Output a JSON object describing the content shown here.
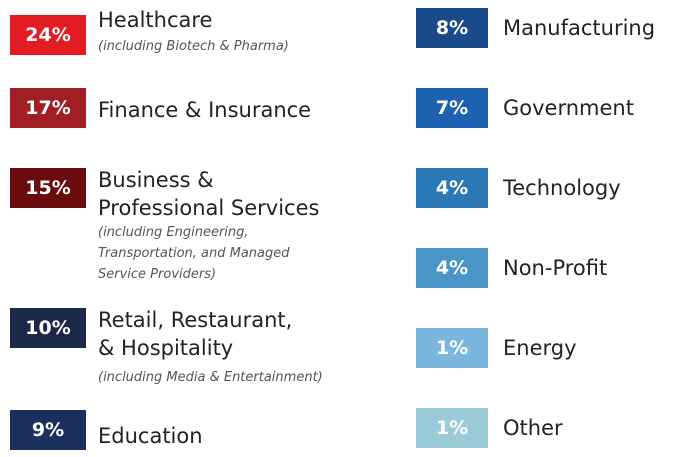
{
  "left": [
    {
      "pct": "24%",
      "label": [
        "Healthcare"
      ],
      "note": [
        "(including Biotech & Pharma)"
      ],
      "color": "#e31b23"
    },
    {
      "pct": "17%",
      "label": [
        "Finance & Insurance"
      ],
      "note": [],
      "color": "#a11f24"
    },
    {
      "pct": "15%",
      "label": [
        "Business &",
        "Professional Services"
      ],
      "note": [
        "(including Engineering,",
        "Transportation, and Managed",
        "Service Providers)"
      ],
      "color": "#6a0b0d"
    },
    {
      "pct": "10%",
      "label": [
        "Retail, Restaurant,",
        "& Hospitality"
      ],
      "note": [
        "(including Media & Entertainment)"
      ],
      "color": "#1a2949"
    },
    {
      "pct": "9%",
      "label": [
        "Education"
      ],
      "note": [],
      "color": "#1b2f5e"
    }
  ],
  "right": [
    {
      "pct": "8%",
      "label": [
        "Manufacturing"
      ],
      "note": [],
      "color": "#1a4a8a"
    },
    {
      "pct": "7%",
      "label": [
        "Government"
      ],
      "note": [],
      "color": "#1d62b0"
    },
    {
      "pct": "4%",
      "label": [
        "Technology"
      ],
      "note": [],
      "color": "#2a78b6"
    },
    {
      "pct": "4%",
      "label": [
        "Non-Profit"
      ],
      "note": [],
      "color": "#4a95c8"
    },
    {
      "pct": "1%",
      "label": [
        "Energy"
      ],
      "note": [],
      "color": "#79b7dc"
    },
    {
      "pct": "1%",
      "label": [
        "Other"
      ],
      "note": [],
      "color": "#9bcbd9"
    }
  ]
}
